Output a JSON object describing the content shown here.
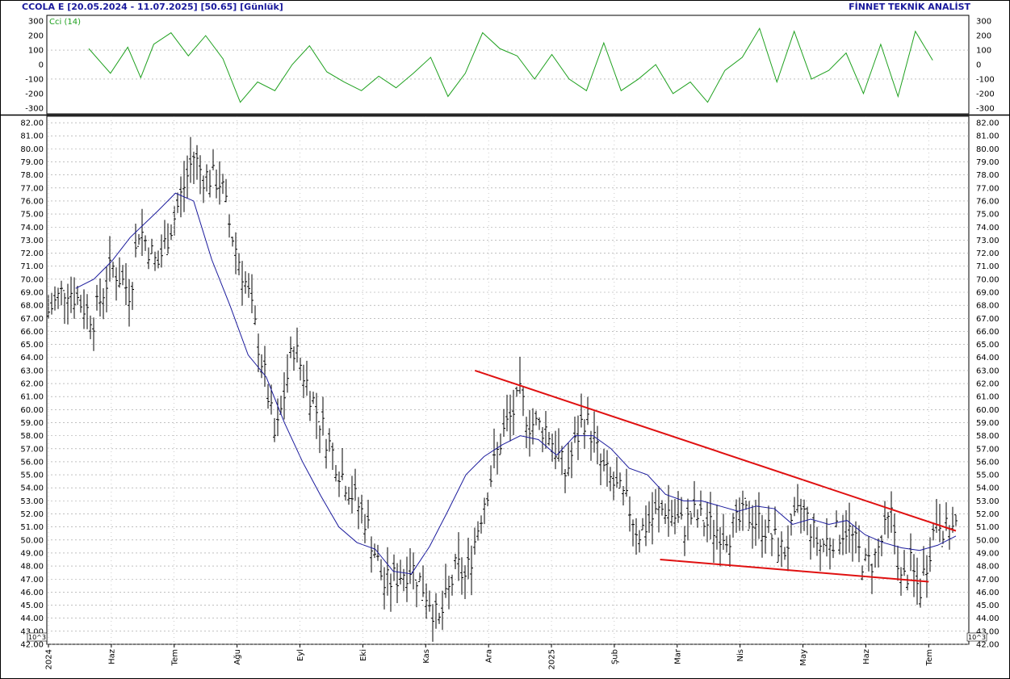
{
  "header": {
    "symbol_info": "CCOLA E  [20.05.2024 - 11.07.2025]  [50.65]  [Günlük]",
    "brand": "FİNNET TEKNİK ANALİST"
  },
  "colors": {
    "price_bars": "#000000",
    "moving_average": "#1a1a9c",
    "cci_line": "#1ea01e",
    "trendlines": "#e01010",
    "grid": "#9a9a9a",
    "header_text": "#1a1a9c"
  },
  "chart_data": [
    {
      "type": "line",
      "panel": "indicator",
      "title": "Cci (14)",
      "ylim": [
        -340,
        340
      ],
      "ytick_labels": [
        "300",
        "200",
        "100",
        "0",
        "-100",
        "-200",
        "-300"
      ],
      "gridlines_at": [
        100,
        -100
      ],
      "x": [
        0.025,
        0.05,
        0.07,
        0.085,
        0.1,
        0.12,
        0.14,
        0.16,
        0.18,
        0.2,
        0.22,
        0.24,
        0.26,
        0.28,
        0.3,
        0.32,
        0.34,
        0.36,
        0.38,
        0.4,
        0.42,
        0.44,
        0.46,
        0.48,
        0.5,
        0.52,
        0.54,
        0.56,
        0.58,
        0.6,
        0.62,
        0.64,
        0.66,
        0.68,
        0.7,
        0.72,
        0.74,
        0.76,
        0.78,
        0.8,
        0.82,
        0.84,
        0.86,
        0.88,
        0.9,
        0.92,
        0.94,
        0.96,
        0.98,
        1.0
      ],
      "series": [
        {
          "values": [
            110,
            -60,
            120,
            -90,
            140,
            220,
            60,
            200,
            40,
            -260,
            -120,
            -180,
            0,
            130,
            -50,
            -120,
            -180,
            -80,
            -160,
            -60,
            50,
            -220,
            -60,
            220,
            110,
            60,
            -100,
            70,
            -100,
            -180,
            150,
            -180,
            -100,
            0,
            -200,
            -120,
            -260,
            -40,
            50,
            250,
            -120,
            230,
            -100,
            -40,
            80,
            -200,
            140,
            -220,
            230,
            30
          ]
        }
      ]
    },
    {
      "type": "ohlc",
      "panel": "price",
      "ylim": [
        42,
        82.5
      ],
      "ytick_labels": [
        "82.00",
        "81.00",
        "80.00",
        "79.00",
        "78.00",
        "77.00",
        "76.00",
        "75.00",
        "74.00",
        "73.00",
        "72.00",
        "71.00",
        "70.00",
        "69.00",
        "68.00",
        "67.00",
        "66.00",
        "65.00",
        "64.00",
        "63.00",
        "62.00",
        "61.00",
        "60.00",
        "59.00",
        "58.00",
        "57.00",
        "56.00",
        "55.00",
        "54.00",
        "53.00",
        "52.00",
        "51.00",
        "50.00",
        "49.00",
        "48.00",
        "47.00",
        "46.00",
        "45.00",
        "44.00",
        "43.00",
        "42.00"
      ],
      "x_labels": [
        "2024",
        "Haz",
        "Tem",
        "Ağu",
        "Eyl",
        "Eki",
        "Kas",
        "Ara",
        "2025",
        "Şub",
        "Mar",
        "Nis",
        "May",
        "Haz",
        "Tem"
      ],
      "axis_badge": "10^3",
      "price_anchors": {
        "x": [
          0,
          0.02,
          0.05,
          0.07,
          0.09,
          0.1,
          0.12,
          0.14,
          0.16,
          0.17,
          0.19,
          0.2,
          0.22,
          0.24,
          0.25,
          0.27,
          0.3,
          0.32,
          0.35,
          0.37,
          0.4,
          0.42,
          0.43,
          0.45,
          0.46,
          0.48,
          0.5,
          0.52,
          0.53,
          0.55,
          0.57,
          0.59,
          0.6,
          0.61,
          0.64,
          0.65,
          0.67,
          0.68,
          0.7,
          0.71,
          0.73,
          0.75,
          0.77,
          0.79,
          0.81,
          0.83,
          0.85,
          0.86,
          0.88,
          0.9,
          0.91,
          0.93,
          0.94,
          0.95,
          0.96,
          0.97,
          0.98,
          0.99,
          1.0
        ],
        "close": [
          67.5,
          69.5,
          67,
          71,
          69,
          74,
          71,
          75,
          79.5,
          78,
          77.5,
          74,
          69,
          62,
          57.5,
          65,
          59,
          55.5,
          51.5,
          46.5,
          48,
          45.5,
          43.5,
          48,
          47,
          53,
          58,
          61,
          59,
          58.5,
          55,
          59.5,
          58,
          55.5,
          52.5,
          50.5,
          52,
          52.5,
          51,
          52,
          51,
          50.5,
          52,
          51,
          49,
          52.5,
          49.5,
          50,
          51,
          48,
          48.5,
          52,
          46.5,
          48,
          46,
          49,
          52,
          50.5,
          51
        ]
      },
      "moving_average": {
        "x": [
          0.03,
          0.05,
          0.07,
          0.09,
          0.12,
          0.14,
          0.16,
          0.18,
          0.2,
          0.22,
          0.24,
          0.26,
          0.28,
          0.3,
          0.32,
          0.34,
          0.36,
          0.38,
          0.4,
          0.42,
          0.44,
          0.46,
          0.48,
          0.5,
          0.52,
          0.54,
          0.56,
          0.58,
          0.6,
          0.62,
          0.64,
          0.66,
          0.68,
          0.7,
          0.72,
          0.74,
          0.76,
          0.78,
          0.8,
          0.82,
          0.84,
          0.86,
          0.88,
          0.9,
          0.92,
          0.94,
          0.96,
          0.98,
          1.0
        ],
        "values": [
          69.3,
          70,
          71.4,
          73.2,
          75.2,
          76.6,
          76,
          71.5,
          68,
          64.2,
          62.5,
          59,
          56,
          53.4,
          51,
          49.8,
          49.3,
          47.6,
          47.4,
          49.5,
          52.2,
          55,
          56.4,
          57.3,
          58,
          57.7,
          56.5,
          58,
          58,
          57,
          55.5,
          55,
          53.5,
          53,
          53,
          52.6,
          52.2,
          52.6,
          52.4,
          51.2,
          51.6,
          51.2,
          51.5,
          50.4,
          49.8,
          49.4,
          49.2,
          49.6,
          50.3
        ]
      },
      "trendlines": [
        {
          "from": {
            "x": 0.47,
            "y": 63
          },
          "to": {
            "x": 1.0,
            "y": 50.7
          }
        },
        {
          "from": {
            "x": 0.674,
            "y": 48.5
          },
          "to": {
            "x": 0.97,
            "y": 46.8
          }
        }
      ]
    }
  ]
}
